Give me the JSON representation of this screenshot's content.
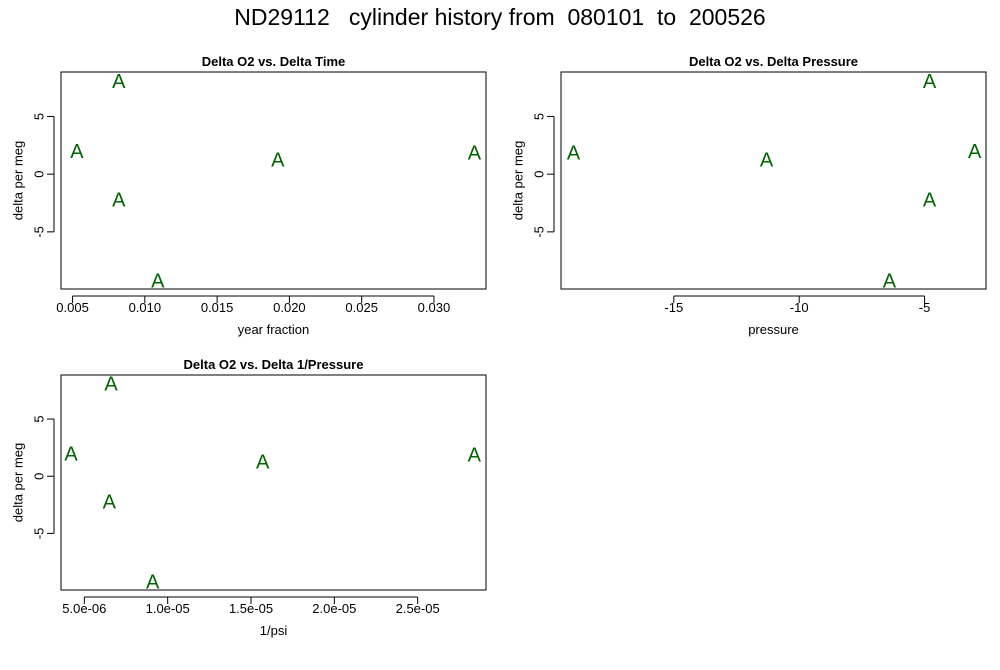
{
  "title": "ND29112   cylinder history from  080101  to  200526",
  "colors": {
    "marker": "#006400",
    "axis": "#000000"
  },
  "chart_data": [
    {
      "type": "scatter",
      "title": "Delta O2 vs. Delta Time",
      "xlabel": "year fraction",
      "ylabel": "delta per meg",
      "marker": "A",
      "xlim": [
        0.0042,
        0.0336
      ],
      "ylim": [
        -9.95,
        8.85
      ],
      "xticks": [
        0.005,
        0.01,
        0.015,
        0.02,
        0.025,
        0.03
      ],
      "xtick_labels": [
        "0.005",
        "0.010",
        "0.015",
        "0.020",
        "0.025",
        "0.030"
      ],
      "yticks": [
        -5,
        0,
        5
      ],
      "ytick_labels": [
        "-5",
        "0",
        "5"
      ],
      "points": [
        {
          "x": 0.0053,
          "y": 1.9
        },
        {
          "x": 0.0082,
          "y": 8.0
        },
        {
          "x": 0.0082,
          "y": -2.3
        },
        {
          "x": 0.0109,
          "y": -9.3
        },
        {
          "x": 0.0192,
          "y": 1.2
        },
        {
          "x": 0.0328,
          "y": 1.8
        }
      ]
    },
    {
      "type": "scatter",
      "title": "Delta O2 vs. Delta Pressure",
      "xlabel": "pressure",
      "ylabel": "delta per meg",
      "marker": "A",
      "xlim": [
        -19.5,
        -2.55
      ],
      "ylim": [
        -9.95,
        8.85
      ],
      "xticks": [
        -15,
        -10,
        -5
      ],
      "xtick_labels": [
        "-15",
        "-10",
        "-5"
      ],
      "yticks": [
        -5,
        0,
        5
      ],
      "ytick_labels": [
        "-5",
        "0",
        "5"
      ],
      "points": [
        {
          "x": -19.0,
          "y": 1.8
        },
        {
          "x": -11.3,
          "y": 1.2
        },
        {
          "x": -6.4,
          "y": -9.3
        },
        {
          "x": -4.8,
          "y": 8.0
        },
        {
          "x": -4.8,
          "y": -2.3
        },
        {
          "x": -3.0,
          "y": 1.9
        }
      ]
    },
    {
      "type": "scatter",
      "title": "Delta O2 vs. Delta 1/Pressure",
      "xlabel": "1/psi",
      "ylabel": "delta per meg",
      "marker": "A",
      "xlim": [
        3.6e-06,
        2.91e-05
      ],
      "ylim": [
        -9.95,
        8.85
      ],
      "xticks": [
        5e-06,
        1e-05,
        1.5e-05,
        2e-05,
        2.5e-05
      ],
      "xtick_labels": [
        "5.0e-06",
        "1.0e-05",
        "1.5e-05",
        "2.0e-05",
        "2.5e-05"
      ],
      "yticks": [
        -5,
        0,
        5
      ],
      "ytick_labels": [
        "-5",
        "0",
        "5"
      ],
      "points": [
        {
          "x": 4.2e-06,
          "y": 1.9
        },
        {
          "x": 6.6e-06,
          "y": 8.0
        },
        {
          "x": 6.5e-06,
          "y": -2.3
        },
        {
          "x": 9.1e-06,
          "y": -9.3
        },
        {
          "x": 1.57e-05,
          "y": 1.2
        },
        {
          "x": 2.84e-05,
          "y": 1.8
        }
      ]
    }
  ]
}
